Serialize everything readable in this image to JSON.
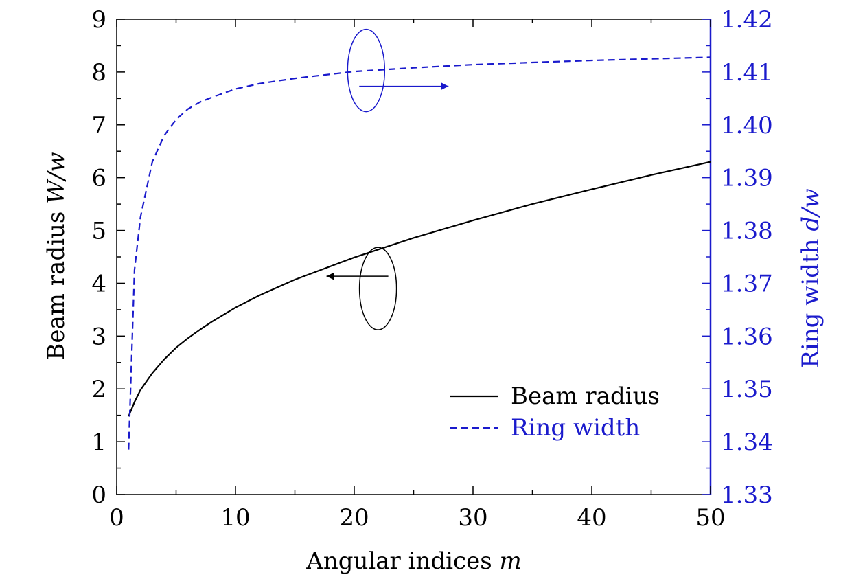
{
  "chart_data": {
    "type": "line",
    "x": [
      1,
      1.5,
      2,
      3,
      4,
      5,
      6,
      7,
      8,
      10,
      12,
      15,
      20,
      25,
      30,
      35,
      40,
      45,
      50
    ],
    "series": [
      {
        "name": "Beam radius",
        "axis": "left",
        "style": "solid",
        "color": "#000000",
        "values": [
          1.48,
          1.75,
          1.98,
          2.3,
          2.56,
          2.78,
          2.96,
          3.12,
          3.27,
          3.54,
          3.77,
          4.07,
          4.49,
          4.86,
          5.19,
          5.5,
          5.78,
          6.05,
          6.3
        ]
      },
      {
        "name": "Ring width",
        "axis": "right",
        "style": "dashed",
        "color": "#1a1acc",
        "values": [
          1.3385,
          1.3725,
          1.3825,
          1.393,
          1.398,
          1.401,
          1.403,
          1.4043,
          1.4052,
          1.4068,
          1.4078,
          1.4088,
          1.4101,
          1.4108,
          1.4114,
          1.4118,
          1.4122,
          1.4125,
          1.4128
        ]
      }
    ],
    "xlabel": "Angular indices",
    "xlabel_var": "m",
    "ylabel": "Beam radius",
    "ylabel_var": "W/w",
    "y2label": "Ring width",
    "y2label_var": "d/w",
    "xlim": [
      0,
      50
    ],
    "ylim": [
      0,
      9
    ],
    "y2lim": [
      1.33,
      1.42
    ],
    "xticks": [
      "0",
      "10",
      "20",
      "30",
      "40",
      "50"
    ],
    "yticks": [
      "0",
      "1",
      "2",
      "3",
      "4",
      "5",
      "6",
      "7",
      "8",
      "9"
    ],
    "y2ticks": [
      "1.33",
      "1.34",
      "1.35",
      "1.36",
      "1.37",
      "1.38",
      "1.39",
      "1.40",
      "1.41",
      "1.42"
    ],
    "grid": false,
    "legend_position": "bottom-right",
    "annotations": [
      {
        "type": "ellipse-arrow",
        "target": "Beam radius",
        "points_to": "left axis",
        "x": 22,
        "y": 3.9
      },
      {
        "type": "ellipse-arrow",
        "target": "Ring width",
        "points_to": "right axis",
        "x": 21,
        "y2": 1.4103
      }
    ],
    "colors": {
      "left_axis": "#000000",
      "right_axis": "#1a1acc"
    }
  }
}
